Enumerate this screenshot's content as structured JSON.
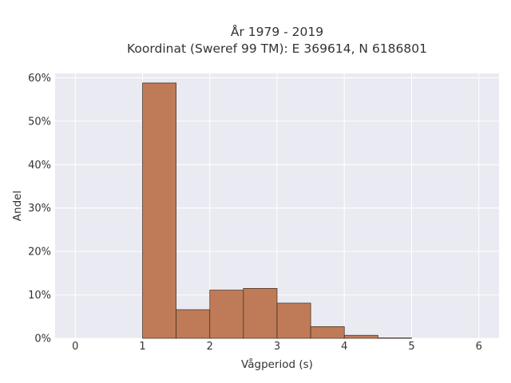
{
  "chart_data": {
    "type": "bar",
    "title_lines": [
      "År 1979 - 2019",
      "Koordinat (Sweref 99 TM): E 369614, N 6186801"
    ],
    "xlabel": "Vågperiod (s)",
    "ylabel": "Andel",
    "xlim": [
      -0.3,
      6.3
    ],
    "ylim": [
      0,
      0.61
    ],
    "x_ticks": [
      0,
      1,
      2,
      3,
      4,
      5,
      6
    ],
    "y_ticks": [
      0,
      0.1,
      0.2,
      0.3,
      0.4,
      0.5,
      0.6
    ],
    "y_tick_labels": [
      "0%",
      "10%",
      "20%",
      "30%",
      "40%",
      "50%",
      "60%"
    ],
    "grid": true,
    "bins": [
      {
        "x0": 1.0,
        "x1": 1.5,
        "value": 0.588
      },
      {
        "x0": 1.5,
        "x1": 2.0,
        "value": 0.066
      },
      {
        "x0": 2.0,
        "x1": 2.5,
        "value": 0.111
      },
      {
        "x0": 2.5,
        "x1": 3.0,
        "value": 0.115
      },
      {
        "x0": 3.0,
        "x1": 3.5,
        "value": 0.081
      },
      {
        "x0": 3.5,
        "x1": 4.0,
        "value": 0.027
      },
      {
        "x0": 4.0,
        "x1": 4.5,
        "value": 0.007
      },
      {
        "x0": 4.5,
        "x1": 5.0,
        "value": 0.001
      }
    ],
    "colors": {
      "bar_fill": "#bf7b57",
      "bar_stroke": "#3a2a20",
      "plot_bg": "#eaeaf2",
      "grid": "#ffffff"
    }
  }
}
